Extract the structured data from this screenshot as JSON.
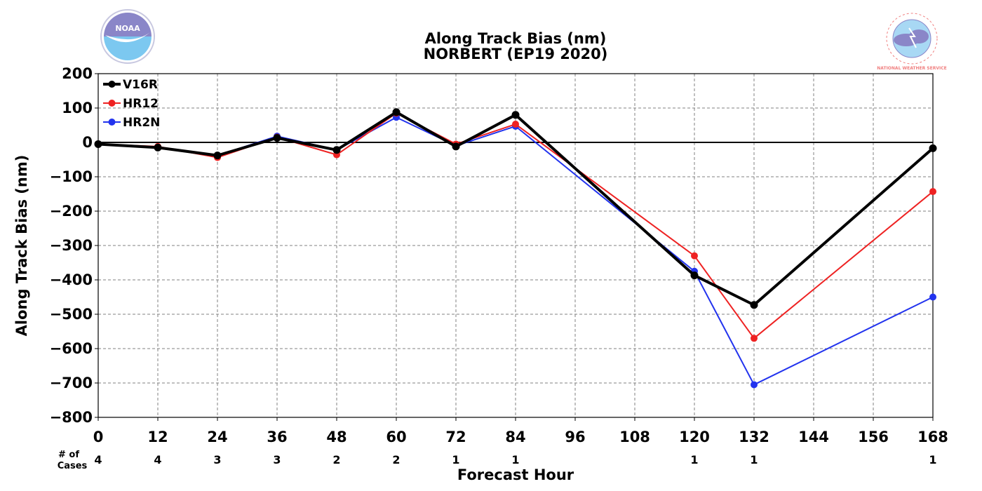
{
  "chart_data": {
    "type": "line",
    "title": "Along Track Bias (nm)",
    "subtitle": "NORBERT (EP19 2020)",
    "xlabel": "Forecast Hour",
    "ylabel": "Along Track Bias (nm)",
    "xlim": [
      0,
      168
    ],
    "ylim": [
      -800,
      200
    ],
    "x_ticks": [
      0,
      12,
      24,
      36,
      48,
      60,
      72,
      84,
      96,
      108,
      120,
      132,
      144,
      156,
      168
    ],
    "y_ticks": [
      200,
      100,
      0,
      -100,
      -200,
      -300,
      -400,
      -500,
      -600,
      -700,
      -800
    ],
    "y_tick_labels": [
      "200",
      "100",
      "0",
      "−100",
      "−200",
      "−300",
      "−400",
      "−500",
      "−600",
      "−700",
      "−800"
    ],
    "grid": true,
    "legend_position": "top-left",
    "series": [
      {
        "name": "V16R",
        "color": "#000000",
        "x": [
          0,
          12,
          24,
          36,
          48,
          60,
          72,
          84,
          120,
          132,
          168
        ],
        "y": [
          -5,
          -15,
          -38,
          13,
          -22,
          88,
          -12,
          80,
          -387,
          -473,
          -17
        ]
      },
      {
        "name": "HR12",
        "color": "#ee2222",
        "x": [
          0,
          12,
          24,
          36,
          48,
          60,
          72,
          84,
          120,
          132,
          168
        ],
        "y": [
          -5,
          -12,
          -44,
          15,
          -36,
          85,
          -5,
          53,
          -330,
          -570,
          -143
        ]
      },
      {
        "name": "HR2N",
        "color": "#2233ee",
        "x": [
          0,
          12,
          24,
          36,
          48,
          60,
          72,
          84,
          120,
          132,
          168
        ],
        "y": [
          -5,
          -15,
          -38,
          18,
          -22,
          73,
          -10,
          47,
          -375,
          -705,
          -450
        ]
      }
    ],
    "cases": {
      "header_line1": "# of",
      "header_line2": "Cases",
      "x": [
        0,
        12,
        24,
        36,
        48,
        60,
        72,
        84,
        120,
        132,
        168
      ],
      "counts": [
        "4",
        "4",
        "3",
        "3",
        "2",
        "2",
        "1",
        "1",
        "1",
        "1",
        "1"
      ]
    }
  },
  "logos": {
    "left": {
      "icon": "noaa-logo-icon",
      "text": "NOAA",
      "colors": {
        "top": "#8a86c8",
        "bottom": "#7cc8f0"
      }
    },
    "right": {
      "icon": "nws-logo-icon",
      "text": "NATIONAL WEATHER SERVICE",
      "colors": {
        "ring": "#f08080",
        "fill": "#a0d0f0",
        "cloud": "#8a86c8"
      }
    }
  }
}
